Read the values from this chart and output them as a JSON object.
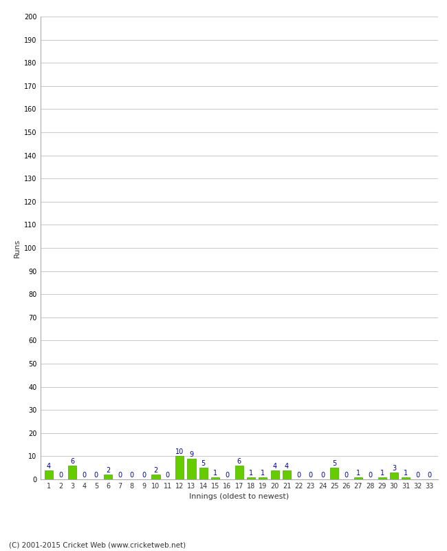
{
  "innings": [
    1,
    2,
    3,
    4,
    5,
    6,
    7,
    8,
    9,
    10,
    11,
    12,
    13,
    14,
    15,
    16,
    17,
    18,
    19,
    20,
    21,
    22,
    23,
    24,
    25,
    26,
    27,
    28,
    29,
    30,
    31,
    32,
    33
  ],
  "values": [
    4,
    0,
    6,
    0,
    0,
    2,
    0,
    0,
    0,
    2,
    0,
    10,
    9,
    5,
    1,
    0,
    6,
    1,
    1,
    4,
    4,
    0,
    0,
    0,
    5,
    0,
    1,
    0,
    1,
    3,
    1,
    0,
    0
  ],
  "bar_color": "#66cc00",
  "bar_edge_color": "#44aa00",
  "label_color": "#000099",
  "ylabel": "Runs",
  "xlabel": "Innings (oldest to newest)",
  "ylim": [
    0,
    200
  ],
  "yticks": [
    0,
    10,
    20,
    30,
    40,
    50,
    60,
    70,
    80,
    90,
    100,
    110,
    120,
    130,
    140,
    150,
    160,
    170,
    180,
    190,
    200
  ],
  "footer": "(C) 2001-2015 Cricket Web (www.cricketweb.net)",
  "background_color": "#ffffff",
  "grid_color": "#cccccc",
  "label_fontsize": 7,
  "tick_fontsize": 7,
  "ylabel_fontsize": 8,
  "xlabel_fontsize": 8,
  "footer_fontsize": 7.5
}
